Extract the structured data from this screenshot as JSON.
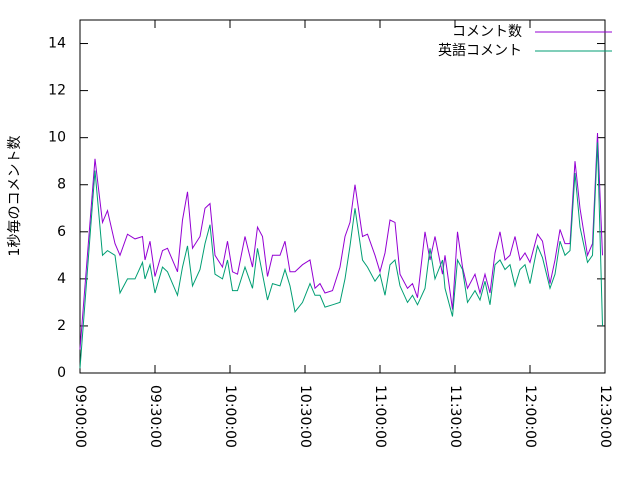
{
  "chart_data": {
    "type": "line",
    "ylabel": "1秒毎のコメント数",
    "xlim": [
      "09:00:00",
      "12:30:00"
    ],
    "xticks": [
      "09:00:00",
      "09:30:00",
      "10:00:00",
      "10:30:00",
      "11:00:00",
      "11:30:00",
      "12:00:00",
      "12:30:00"
    ],
    "ylim": [
      0,
      15
    ],
    "yticks": [
      0,
      2,
      4,
      6,
      8,
      10,
      12,
      14
    ],
    "grid": false,
    "legend": "top-right",
    "x": [
      "09:00:00",
      "09:06:00",
      "09:09:00",
      "09:11:00",
      "09:14:00",
      "09:16:00",
      "09:19:00",
      "09:22:00",
      "09:25:00",
      "09:26:00",
      "09:28:00",
      "09:30:00",
      "09:33:00",
      "09:35:00",
      "09:39:00",
      "09:41:00",
      "09:43:00",
      "09:45:00",
      "09:48:00",
      "09:50:00",
      "09:52:00",
      "09:54:00",
      "09:57:00",
      "09:59:00",
      "10:01:00",
      "10:03:00",
      "10:06:00",
      "10:09:00",
      "10:11:00",
      "10:13:00",
      "10:15:00",
      "10:17:00",
      "10:20:00",
      "10:22:00",
      "10:24:00",
      "10:26:00",
      "10:29:00",
      "10:32:00",
      "10:34:00",
      "10:36:00",
      "10:38:00",
      "10:41:00",
      "10:44:00",
      "10:46:00",
      "10:48:00",
      "10:50:00",
      "10:53:00",
      "10:55:00",
      "10:58:00",
      "11:00:00",
      "11:02:00",
      "11:04:00",
      "11:06:00",
      "11:08:00",
      "11:11:00",
      "11:13:00",
      "11:15:00",
      "11:18:00",
      "11:20:00",
      "11:22:00",
      "11:25:00",
      "11:26:00",
      "11:29:00",
      "11:31:00",
      "11:33:00",
      "11:35:00",
      "11:38:00",
      "11:40:00",
      "11:42:00",
      "11:44:00",
      "11:46:00",
      "11:48:00",
      "11:50:00",
      "11:52:00",
      "11:54:00",
      "11:56:00",
      "11:58:00",
      "12:00:00",
      "12:03:00",
      "12:05:00",
      "12:08:00",
      "12:10:00",
      "12:12:00",
      "12:14:00",
      "12:16:00",
      "12:18:00",
      "12:20:00",
      "12:23:00",
      "12:25:00",
      "12:27:00",
      "12:29:00"
    ],
    "series": [
      {
        "name": "コメント数",
        "color": "#9400d3",
        "values": [
          1.0,
          9.1,
          6.4,
          6.9,
          5.5,
          5.0,
          5.9,
          5.7,
          5.8,
          4.8,
          5.6,
          4.1,
          5.2,
          5.3,
          4.3,
          6.5,
          7.7,
          5.3,
          5.8,
          7.0,
          7.2,
          5.0,
          4.5,
          5.6,
          4.3,
          4.2,
          5.8,
          4.5,
          6.2,
          5.8,
          4.1,
          5.0,
          5.0,
          5.6,
          4.3,
          4.3,
          4.6,
          4.8,
          3.6,
          3.8,
          3.4,
          3.5,
          4.5,
          5.8,
          6.4,
          8.0,
          5.8,
          5.9,
          5.0,
          4.3,
          5.1,
          6.5,
          6.4,
          4.2,
          3.6,
          3.8,
          3.2,
          6.0,
          4.8,
          5.8,
          4.2,
          5.0,
          2.7,
          6.0,
          4.5,
          3.6,
          4.2,
          3.4,
          4.2,
          3.4,
          5.1,
          6.0,
          4.8,
          5.0,
          5.8,
          4.8,
          5.1,
          4.7,
          5.9,
          5.6,
          3.8,
          4.8,
          6.1,
          5.5,
          5.5,
          9.0,
          7.0,
          5.0,
          5.5,
          10.2,
          5.0
        ]
      },
      {
        "name": "英語コメント",
        "color": "#009e73",
        "values": [
          0.2,
          8.6,
          5.0,
          5.2,
          5.0,
          3.4,
          4.0,
          4.0,
          4.7,
          4.0,
          4.6,
          3.4,
          4.5,
          4.3,
          3.3,
          4.5,
          5.4,
          3.7,
          4.4,
          5.5,
          6.3,
          4.2,
          4.0,
          4.8,
          3.5,
          3.5,
          4.5,
          3.6,
          5.3,
          4.2,
          3.1,
          3.8,
          3.7,
          4.4,
          3.7,
          2.6,
          3.0,
          3.8,
          3.3,
          3.3,
          2.8,
          2.9,
          3.0,
          4.0,
          5.4,
          7.0,
          4.8,
          4.5,
          3.9,
          4.2,
          3.3,
          4.6,
          4.8,
          3.7,
          3.0,
          3.3,
          2.9,
          3.6,
          5.3,
          4.0,
          4.8,
          3.6,
          2.4,
          4.8,
          4.4,
          3.0,
          3.5,
          3.1,
          3.9,
          2.9,
          4.6,
          4.8,
          4.4,
          4.6,
          3.7,
          4.4,
          4.6,
          3.8,
          5.4,
          4.9,
          3.6,
          4.2,
          5.6,
          5.0,
          5.2,
          8.5,
          6.2,
          4.7,
          5.0,
          9.8,
          2.0
        ]
      }
    ]
  }
}
